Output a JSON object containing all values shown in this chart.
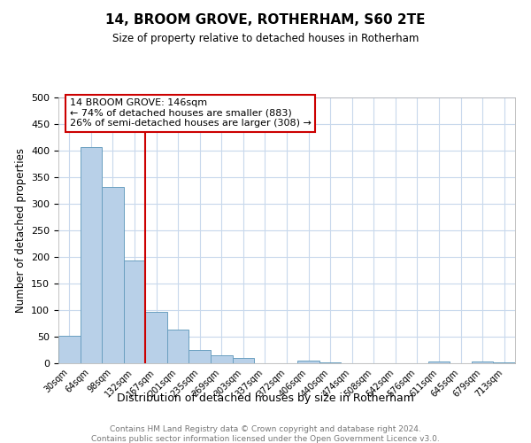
{
  "title": "14, BROOM GROVE, ROTHERHAM, S60 2TE",
  "subtitle": "Size of property relative to detached houses in Rotherham",
  "xlabel": "Distribution of detached houses by size in Rotherham",
  "ylabel": "Number of detached properties",
  "bar_labels": [
    "30sqm",
    "64sqm",
    "98sqm",
    "132sqm",
    "167sqm",
    "201sqm",
    "235sqm",
    "269sqm",
    "303sqm",
    "337sqm",
    "372sqm",
    "406sqm",
    "440sqm",
    "474sqm",
    "508sqm",
    "542sqm",
    "576sqm",
    "611sqm",
    "645sqm",
    "679sqm",
    "713sqm"
  ],
  "bar_values": [
    52,
    406,
    332,
    193,
    97,
    63,
    25,
    15,
    10,
    0,
    0,
    5,
    1,
    0,
    0,
    0,
    0,
    3,
    0,
    3,
    2
  ],
  "bar_color": "#b8d0e8",
  "bar_edge_color": "#6a9fc0",
  "vline_x": 3.5,
  "vline_color": "#cc0000",
  "annotation_title": "14 BROOM GROVE: 146sqm",
  "annotation_line1": "← 74% of detached houses are smaller (883)",
  "annotation_line2": "26% of semi-detached houses are larger (308) →",
  "annotation_box_color": "#ffffff",
  "annotation_box_edge": "#cc0000",
  "ylim": [
    0,
    500
  ],
  "yticks": [
    0,
    50,
    100,
    150,
    200,
    250,
    300,
    350,
    400,
    450,
    500
  ],
  "footer1": "Contains HM Land Registry data © Crown copyright and database right 2024.",
  "footer2": "Contains public sector information licensed under the Open Government Licence v3.0.",
  "background_color": "#ffffff",
  "grid_color": "#c8d8ec"
}
